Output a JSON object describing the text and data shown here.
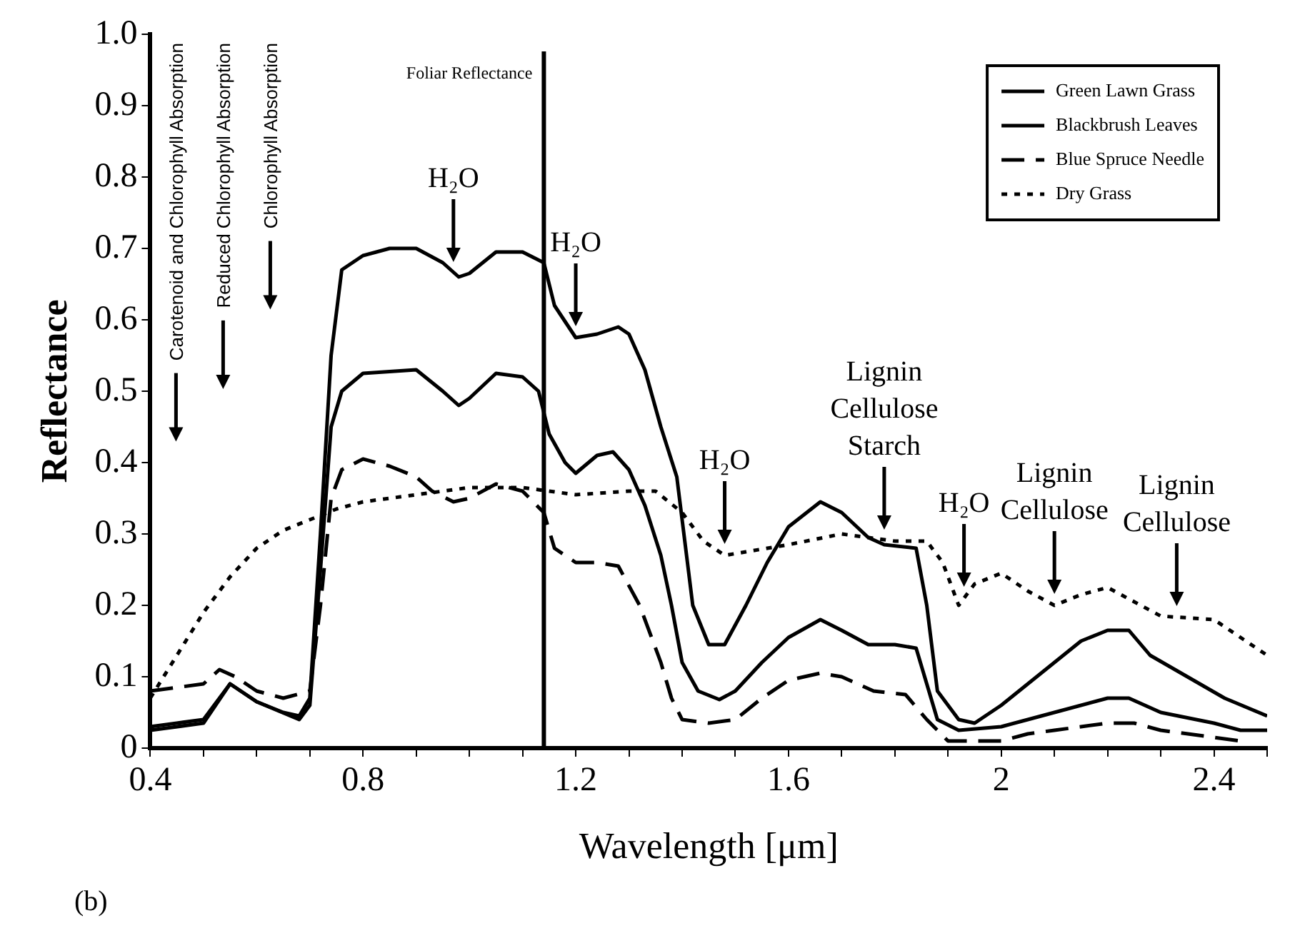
{
  "chart_data": {
    "type": "line",
    "xlabel": "Wavelength [μm]",
    "ylabel": "Reflectance",
    "xlim": [
      0.4,
      2.5
    ],
    "ylim": [
      0,
      1
    ],
    "xticks": [
      0.4,
      {
        "value": 0.5,
        "label": null
      },
      {
        "value": 0.6,
        "label": null
      },
      {
        "value": 0.7,
        "label": null
      },
      0.8,
      {
        "value": 0.9,
        "label": null
      },
      {
        "value": 1,
        "label": null
      },
      {
        "value": 1.1,
        "label": null
      },
      1.2,
      {
        "value": 1.3,
        "label": null
      },
      {
        "value": 1.4,
        "label": null
      },
      {
        "value": 1.5,
        "label": null
      },
      1.6,
      {
        "value": 1.7,
        "label": null
      },
      {
        "value": 1.8,
        "label": null
      },
      {
        "value": 1.9,
        "label": null
      },
      2,
      {
        "value": 2.1,
        "label": null
      },
      {
        "value": 2.2,
        "label": null
      },
      {
        "value": 2.3,
        "label": null
      },
      2.4,
      {
        "value": 2.5,
        "label": null
      }
    ],
    "yticks": [
      0,
      0.1,
      0.2,
      0.3,
      0.4,
      0.5,
      0.6,
      0.7,
      0.8,
      0.9,
      {
        "value": 1,
        "label": "1.0"
      }
    ],
    "grid": false,
    "legend": "top right",
    "marker": "none",
    "series": [
      {
        "name": "Green Lawn Grass",
        "color": "#000000",
        "line_style": "solid",
        "x": [
          0.4,
          0.45,
          0.5,
          0.55,
          0.6,
          0.65,
          0.68,
          0.7,
          0.72,
          0.74,
          0.76,
          0.8,
          0.85,
          0.9,
          0.95,
          0.98,
          1.0,
          1.05,
          1.1,
          1.14,
          1.16,
          1.2,
          1.24,
          1.28,
          1.3,
          1.33,
          1.36,
          1.39,
          1.42,
          1.45,
          1.48,
          1.52,
          1.56,
          1.6,
          1.66,
          1.7,
          1.75,
          1.78,
          1.84,
          1.86,
          1.88,
          1.92,
          1.95,
          2.0,
          2.05,
          2.1,
          2.15,
          2.2,
          2.24,
          2.28,
          2.35,
          2.42,
          2.5
        ],
        "values": [
          0.03,
          0.035,
          0.04,
          0.09,
          0.065,
          0.05,
          0.045,
          0.07,
          0.3,
          0.55,
          0.67,
          0.69,
          0.7,
          0.7,
          0.68,
          0.66,
          0.665,
          0.695,
          0.695,
          0.68,
          0.62,
          0.575,
          0.58,
          0.59,
          0.58,
          0.53,
          0.45,
          0.38,
          0.2,
          0.145,
          0.145,
          0.2,
          0.26,
          0.31,
          0.345,
          0.33,
          0.295,
          0.285,
          0.28,
          0.2,
          0.08,
          0.04,
          0.035,
          0.06,
          0.09,
          0.12,
          0.15,
          0.165,
          0.165,
          0.13,
          0.1,
          0.07,
          0.045
        ]
      },
      {
        "name": "Blackbrush Leaves",
        "color": "#000000",
        "line_style": "solid",
        "x": [
          0.4,
          0.5,
          0.55,
          0.6,
          0.68,
          0.7,
          0.72,
          0.74,
          0.76,
          0.8,
          0.9,
          0.95,
          0.98,
          1.0,
          1.05,
          1.1,
          1.13,
          1.15,
          1.18,
          1.2,
          1.24,
          1.27,
          1.3,
          1.33,
          1.36,
          1.38,
          1.4,
          1.43,
          1.47,
          1.5,
          1.55,
          1.6,
          1.66,
          1.7,
          1.75,
          1.8,
          1.84,
          1.86,
          1.88,
          1.92,
          2.0,
          2.05,
          2.1,
          2.2,
          2.24,
          2.3,
          2.4,
          2.45,
          2.5
        ],
        "values": [
          0.025,
          0.035,
          0.09,
          0.065,
          0.04,
          0.06,
          0.25,
          0.45,
          0.5,
          0.525,
          0.53,
          0.5,
          0.48,
          0.49,
          0.525,
          0.52,
          0.5,
          0.44,
          0.4,
          0.385,
          0.41,
          0.415,
          0.39,
          0.34,
          0.27,
          0.2,
          0.12,
          0.08,
          0.068,
          0.08,
          0.12,
          0.155,
          0.18,
          0.165,
          0.145,
          0.145,
          0.14,
          0.09,
          0.04,
          0.025,
          0.03,
          0.04,
          0.05,
          0.07,
          0.07,
          0.05,
          0.035,
          0.025,
          0.025
        ]
      },
      {
        "name": "Blue Spruce Needle",
        "color": "#000000",
        "line_style": "dashed",
        "x": [
          0.4,
          0.45,
          0.5,
          0.53,
          0.56,
          0.6,
          0.65,
          0.7,
          0.72,
          0.74,
          0.76,
          0.8,
          0.85,
          0.9,
          0.93,
          0.97,
          1.0,
          1.05,
          1.1,
          1.14,
          1.16,
          1.2,
          1.24,
          1.28,
          1.32,
          1.36,
          1.38,
          1.4,
          1.45,
          1.5,
          1.55,
          1.6,
          1.66,
          1.7,
          1.76,
          1.82,
          1.86,
          1.9,
          1.95,
          2.0,
          2.05,
          2.1,
          2.2,
          2.25,
          2.3,
          2.4,
          2.45
        ],
        "values": [
          0.08,
          0.085,
          0.09,
          0.11,
          0.1,
          0.08,
          0.07,
          0.08,
          0.2,
          0.35,
          0.39,
          0.405,
          0.395,
          0.38,
          0.36,
          0.345,
          0.35,
          0.37,
          0.36,
          0.33,
          0.28,
          0.26,
          0.26,
          0.255,
          0.2,
          0.12,
          0.07,
          0.04,
          0.035,
          0.04,
          0.07,
          0.095,
          0.105,
          0.1,
          0.08,
          0.075,
          0.04,
          0.01,
          0.01,
          0.01,
          0.02,
          0.025,
          0.035,
          0.035,
          0.025,
          0.015,
          0.01
        ]
      },
      {
        "name": "Dry Grass",
        "color": "#000000",
        "line_style": "dotted",
        "x": [
          0.4,
          0.45,
          0.5,
          0.55,
          0.6,
          0.65,
          0.7,
          0.75,
          0.8,
          0.9,
          1.0,
          1.1,
          1.2,
          1.3,
          1.35,
          1.4,
          1.44,
          1.48,
          1.52,
          1.6,
          1.7,
          1.8,
          1.86,
          1.89,
          1.92,
          1.95,
          2.0,
          2.05,
          2.1,
          2.15,
          2.2,
          2.25,
          2.3,
          2.4,
          2.45,
          2.5
        ],
        "values": [
          0.07,
          0.13,
          0.19,
          0.24,
          0.28,
          0.305,
          0.32,
          0.335,
          0.345,
          0.355,
          0.365,
          0.365,
          0.355,
          0.36,
          0.36,
          0.33,
          0.29,
          0.27,
          0.275,
          0.285,
          0.3,
          0.29,
          0.29,
          0.26,
          0.2,
          0.23,
          0.245,
          0.22,
          0.2,
          0.215,
          0.225,
          0.205,
          0.185,
          0.18,
          0.155,
          0.13
        ]
      }
    ],
    "ref_lines": [
      {
        "axis": "x",
        "value": 1.14,
        "label": "Foliar Reflectance",
        "color": "#000000",
        "line_style": "solid"
      }
    ],
    "annotations": [
      "Carotenoid and Chlorophyll Absorption",
      "Reduced Chlorophyll Absorption",
      "Chlorophyll Absorption",
      {
        "text": "H₂O",
        "x": 0.97,
        "y": 0.665
      },
      {
        "text": "H₂O",
        "x": 1.2,
        "y": 0.575
      },
      {
        "text": "H₂O",
        "x": 1.48,
        "y": 0.27
      },
      {
        "text": "Lignin\nCellulose\nStarch",
        "x": 1.78,
        "y": 0.29
      },
      {
        "text": "H₂O",
        "x": 1.93,
        "y": 0.21
      },
      {
        "text": "Lignin\nCellulose",
        "x": 2.1,
        "y": 0.2
      },
      {
        "text": "Lignin\nCellulose",
        "x": 2.33,
        "y": 0.183
      },
      "(b)"
    ]
  }
}
